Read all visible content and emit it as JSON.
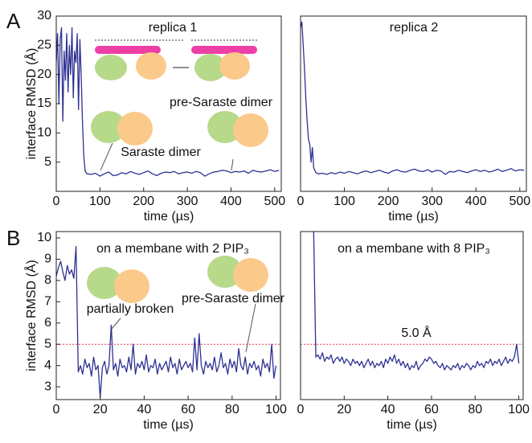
{
  "panel_labels": [
    "A",
    "B"
  ],
  "chart_data": [
    {
      "type": "line",
      "title": "replica 1",
      "ylabel": "interface RMSD (Å)",
      "xlabel": "time (µs)",
      "annotations": [
        "pre-Saraste dimer",
        "Saraste dimer"
      ],
      "xlim": [
        0,
        515
      ],
      "ylim": [
        0,
        30
      ],
      "xticks": [
        0,
        100,
        200,
        300,
        400,
        500
      ],
      "yticks": [
        5,
        10,
        15,
        20,
        25,
        30
      ],
      "x": [
        0,
        3,
        6,
        9,
        12,
        15,
        18,
        21,
        24,
        27,
        30,
        33,
        36,
        39,
        42,
        45,
        48,
        51,
        54,
        57,
        60,
        63,
        66,
        70,
        80,
        90,
        100,
        110,
        120,
        130,
        140,
        150,
        160,
        170,
        180,
        190,
        200,
        210,
        220,
        230,
        240,
        250,
        260,
        270,
        280,
        290,
        300,
        310,
        320,
        330,
        340,
        350,
        360,
        370,
        380,
        390,
        400,
        410,
        420,
        430,
        440,
        450,
        460,
        470,
        480,
        490,
        500,
        510
      ],
      "series": [
        {
          "color": "#2e3192",
          "values": [
            22,
            27,
            15,
            26,
            28,
            12,
            24,
            19,
            27,
            17,
            25,
            20,
            28,
            16,
            24,
            22,
            27,
            14,
            26,
            20,
            12,
            6,
            3.5,
            3.0,
            2.9,
            3.1,
            2.6,
            3.0,
            3.3,
            2.7,
            2.8,
            3.2,
            3.0,
            3.4,
            3.1,
            2.9,
            3.2,
            3.5,
            3.0,
            2.7,
            3.1,
            3.3,
            3.2,
            3.4,
            3.0,
            3.2,
            3.3,
            3.1,
            3.4,
            3.2,
            2.6,
            3.0,
            3.3,
            3.4,
            3.6,
            3.5,
            3.2,
            3.4,
            3.3,
            3.5,
            3.1,
            3.6,
            3.4,
            3.3,
            3.5,
            3.7,
            3.4,
            3.6
          ]
        }
      ]
    },
    {
      "type": "line",
      "title": "replica 2",
      "xlabel": "time (µs)",
      "xlim": [
        0,
        515
      ],
      "ylim": [
        0,
        30
      ],
      "xticks": [
        0,
        100,
        200,
        300,
        400,
        500
      ],
      "x": [
        0,
        3,
        6,
        9,
        12,
        15,
        18,
        21,
        24,
        27,
        30,
        35,
        40,
        50,
        60,
        70,
        80,
        90,
        100,
        110,
        120,
        130,
        140,
        150,
        160,
        170,
        180,
        190,
        200,
        210,
        220,
        230,
        240,
        250,
        260,
        270,
        280,
        290,
        300,
        310,
        320,
        330,
        340,
        350,
        360,
        370,
        380,
        390,
        400,
        410,
        420,
        430,
        440,
        450,
        460,
        470,
        480,
        490,
        500,
        510
      ],
      "series": [
        {
          "color": "#2e3192",
          "values": [
            28,
            29,
            25,
            21,
            16,
            12,
            9,
            8,
            5,
            7.5,
            4,
            3.2,
            3.0,
            3.1,
            2.9,
            3.2,
            3.0,
            3.3,
            3.1,
            3.4,
            3.2,
            3.0,
            3.3,
            3.5,
            3.2,
            3.4,
            3.6,
            3.3,
            3.1,
            3.5,
            3.7,
            3.4,
            3.3,
            3.6,
            3.8,
            3.5,
            3.4,
            3.7,
            3.3,
            3.6,
            3.5,
            2.9,
            3.4,
            3.3,
            3.6,
            3.4,
            3.2,
            3.5,
            3.7,
            3.4,
            3.6,
            3.3,
            3.5,
            3.8,
            3.4,
            3.6,
            3.9,
            3.5,
            3.7,
            3.6
          ]
        }
      ]
    },
    {
      "type": "line",
      "title": "on a membane with 2 PIP₃",
      "ylabel": "interface RMSD (Å)",
      "xlabel": "time (µs)",
      "annotations": [
        "pre-Saraste dimer",
        "partially broken"
      ],
      "xlim": [
        0,
        102
      ],
      "ylim": [
        2.4,
        10.3
      ],
      "xticks": [
        0,
        20,
        40,
        60,
        80,
        100
      ],
      "yticks": [
        3,
        4,
        5,
        6,
        7,
        8,
        9,
        10
      ],
      "reference_line": 5,
      "reference_color": "#e8334a",
      "x": [
        0,
        1,
        2,
        3,
        4,
        5,
        6,
        7,
        8,
        9,
        10,
        11,
        12,
        13,
        14,
        15,
        16,
        17,
        18,
        19,
        20,
        21,
        22,
        23,
        24,
        25,
        26,
        27,
        28,
        29,
        30,
        31,
        32,
        33,
        34,
        35,
        36,
        37,
        38,
        39,
        40,
        41,
        42,
        43,
        44,
        45,
        46,
        47,
        48,
        49,
        50,
        51,
        52,
        53,
        54,
        55,
        56,
        57,
        58,
        59,
        60,
        61,
        62,
        63,
        64,
        65,
        66,
        67,
        68,
        69,
        70,
        71,
        72,
        73,
        74,
        75,
        76,
        77,
        78,
        79,
        80,
        81,
        82,
        83,
        84,
        85,
        86,
        87,
        88,
        89,
        90,
        91,
        92,
        93,
        94,
        95,
        96,
        97,
        98,
        99,
        100
      ],
      "series": [
        {
          "color": "#2e3192",
          "values": [
            8.2,
            8.6,
            8.9,
            8.4,
            8.0,
            8.7,
            8.3,
            8.5,
            8.1,
            9.6,
            3.7,
            4.0,
            3.6,
            4.3,
            3.9,
            4.1,
            3.5,
            4.4,
            3.8,
            4.0,
            2.5,
            3.9,
            4.2,
            3.6,
            4.0,
            5.9,
            3.8,
            4.1,
            3.5,
            4.3,
            3.9,
            4.0,
            3.7,
            4.4,
            3.8,
            5.0,
            3.6,
            4.1,
            3.9,
            4.2,
            3.8,
            4.5,
            3.7,
            4.0,
            3.9,
            4.3,
            3.6,
            4.1,
            3.8,
            4.0,
            4.2,
            3.7,
            4.4,
            3.9,
            4.1,
            3.6,
            4.3,
            3.8,
            4.0,
            4.2,
            3.9,
            4.1,
            3.7,
            5.3,
            3.8,
            5.5,
            4.0,
            3.6,
            4.2,
            3.9,
            4.1,
            3.8,
            4.4,
            3.7,
            4.0,
            4.6,
            3.9,
            4.1,
            3.6,
            4.3,
            3.9,
            4.2,
            3.7,
            4.8,
            4.0,
            3.8,
            4.4,
            3.6,
            4.1,
            3.9,
            4.2,
            3.8,
            4.0,
            3.5,
            4.3,
            3.9,
            4.1,
            3.7,
            5.0,
            3.4,
            4.0
          ]
        }
      ]
    },
    {
      "type": "line",
      "title": "on a membane with 8 PIP₃",
      "xlabel": "time (µs)",
      "annotations": [
        "5.0 Å"
      ],
      "xlim": [
        0,
        102
      ],
      "ylim": [
        2.4,
        10.3
      ],
      "xticks": [
        0,
        20,
        40,
        60,
        80,
        100
      ],
      "reference_line": 5,
      "reference_color": "#e8334a",
      "x": [
        0,
        1,
        2,
        3,
        4,
        5,
        6,
        7,
        8,
        9,
        10,
        11,
        12,
        13,
        14,
        15,
        16,
        17,
        18,
        19,
        20,
        21,
        22,
        23,
        24,
        25,
        26,
        27,
        28,
        29,
        30,
        31,
        32,
        33,
        34,
        35,
        36,
        37,
        38,
        39,
        40,
        41,
        42,
        43,
        44,
        45,
        46,
        47,
        48,
        49,
        50,
        51,
        52,
        53,
        54,
        55,
        56,
        57,
        58,
        59,
        60,
        61,
        62,
        63,
        64,
        65,
        66,
        67,
        68,
        69,
        70,
        71,
        72,
        73,
        74,
        75,
        76,
        77,
        78,
        79,
        80,
        81,
        82,
        83,
        84,
        85,
        86,
        87,
        88,
        89,
        90,
        91,
        92,
        93,
        94,
        95,
        96,
        97,
        98,
        99,
        100
      ],
      "series": [
        {
          "color": "#2e3192",
          "values": [
            null,
            null,
            null,
            null,
            null,
            null,
            10.3,
            4.4,
            4.5,
            4.3,
            4.6,
            4.2,
            4.4,
            4.3,
            4.5,
            4.1,
            4.3,
            4.4,
            4.2,
            4.4,
            4.1,
            4.3,
            4.2,
            4.0,
            4.3,
            4.1,
            4.2,
            4.0,
            4.2,
            3.9,
            4.1,
            4.3,
            4.0,
            4.2,
            3.9,
            4.1,
            4.0,
            4.2,
            3.9,
            4.3,
            4.1,
            4.4,
            4.2,
            4.5,
            4.1,
            4.3,
            4.0,
            4.2,
            3.9,
            4.1,
            3.8,
            4.0,
            3.9,
            4.2,
            3.8,
            4.0,
            4.1,
            4.3,
            4.2,
            4.4,
            4.3,
            4.1,
            4.2,
            4.0,
            3.9,
            4.1,
            3.8,
            4.0,
            3.9,
            3.8,
            4.0,
            3.9,
            4.1,
            3.8,
            4.0,
            3.9,
            4.1,
            4.0,
            3.8,
            4.0,
            3.9,
            4.2,
            4.0,
            4.1,
            3.9,
            4.2,
            4.1,
            4.3,
            4.0,
            4.2,
            4.1,
            4.3,
            4.0,
            4.2,
            4.4,
            4.1,
            4.3,
            4.2,
            4.4,
            5.0,
            4.1
          ]
        }
      ]
    }
  ]
}
